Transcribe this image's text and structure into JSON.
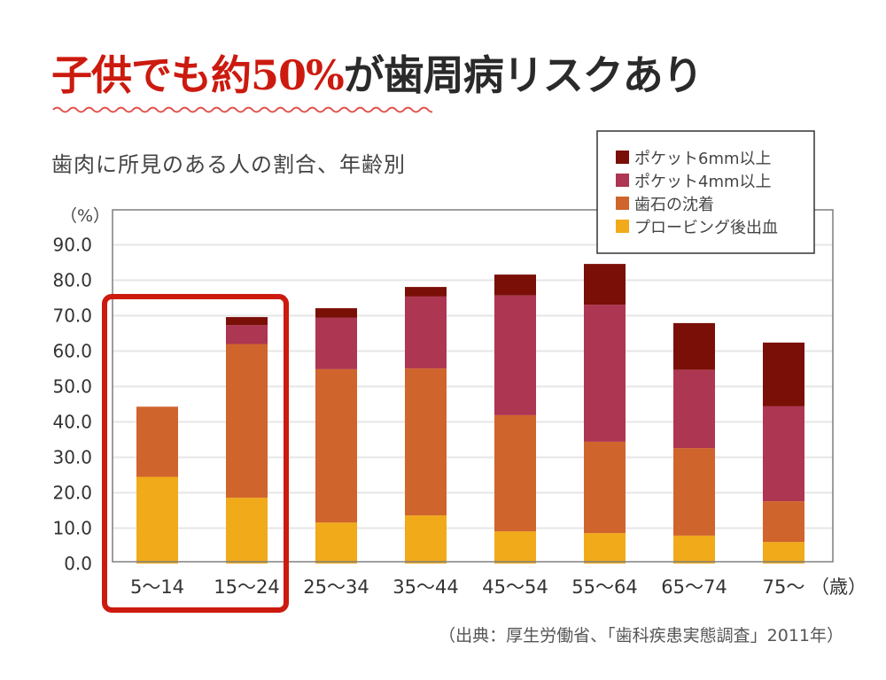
{
  "headline": {
    "highlight": "子供でも約50%",
    "rest": "が歯周病リスクあり",
    "highlight_color": "#cc1a0f",
    "rest_color": "#2a2a2a"
  },
  "subtitle": "歯肉に所見のある人の割合、年齢別",
  "source": "（出典：厚生労働省、「歯科疾患実態調査」2011年）",
  "chart_data": {
    "type": "bar",
    "stacked": true,
    "title": "歯肉に所見のある人の割合、年齢別",
    "ylabel": "（%）",
    "xlabel": "（歳）",
    "ylim": [
      0,
      90
    ],
    "yticks": [
      "0.0",
      "10.0",
      "20.0",
      "30.0",
      "40.0",
      "50.0",
      "60.0",
      "70.0",
      "80.0",
      "90.0"
    ],
    "grid": true,
    "legend_position": "top-right",
    "categories": [
      "5～14",
      "15～24",
      "25～34",
      "35～44",
      "45～54",
      "55～64",
      "65～74",
      "75～"
    ],
    "highlighted_categories": [
      "5～14",
      "15～24"
    ],
    "highlight_color": "#cc1a0f",
    "series": [
      {
        "name": "プロービング後出血",
        "color": "#f0aa1a",
        "values": [
          24.5,
          18.6,
          11.6,
          13.6,
          9.1,
          8.6,
          7.9,
          6.1
        ]
      },
      {
        "name": "歯石の沈着",
        "color": "#d0642d",
        "values": [
          19.8,
          43.4,
          43.3,
          41.5,
          32.8,
          25.8,
          24.7,
          11.5
        ]
      },
      {
        "name": "ポケット4mm以上",
        "color": "#ad3652",
        "values": [
          0,
          5.3,
          14.5,
          20.3,
          33.8,
          38.7,
          22.1,
          26.8
        ]
      },
      {
        "name": "ポケット6mm以上",
        "color": "#7a0f07",
        "values": [
          0,
          2.3,
          2.7,
          2.7,
          5.9,
          11.5,
          13.2,
          18.0
        ]
      }
    ],
    "legend_order": [
      "ポケット6mm以上",
      "ポケット4mm以上",
      "歯石の沈着",
      "プロービング後出血"
    ]
  }
}
